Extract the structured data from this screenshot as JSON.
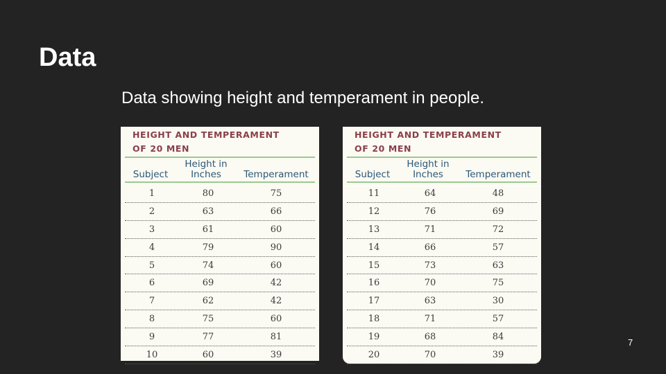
{
  "slide": {
    "title": "Data",
    "subtitle": "Data showing height and temperament in people.",
    "page_number": "7"
  },
  "table_left": {
    "title_line1": "HEIGHT AND TEMPERAMENT",
    "title_line2": "OF 20 MEN",
    "headers": {
      "subject": "Subject",
      "height_line1": "Height in",
      "height_line2": "Inches",
      "temperament": "Temperament"
    },
    "rows": [
      {
        "subject": "1",
        "height": "80",
        "temperament": "75"
      },
      {
        "subject": "2",
        "height": "63",
        "temperament": "66"
      },
      {
        "subject": "3",
        "height": "61",
        "temperament": "60"
      },
      {
        "subject": "4",
        "height": "79",
        "temperament": "90"
      },
      {
        "subject": "5",
        "height": "74",
        "temperament": "60"
      },
      {
        "subject": "6",
        "height": "69",
        "temperament": "42"
      },
      {
        "subject": "7",
        "height": "62",
        "temperament": "42"
      },
      {
        "subject": "8",
        "height": "75",
        "temperament": "60"
      },
      {
        "subject": "9",
        "height": "77",
        "temperament": "81"
      },
      {
        "subject": "10",
        "height": "60",
        "temperament": "39"
      }
    ]
  },
  "table_right": {
    "title_line1": "HEIGHT AND TEMPERAMENT",
    "title_line2": "OF 20 MEN",
    "headers": {
      "subject": "Subject",
      "height_line1": "Height in",
      "height_line2": "Inches",
      "temperament": "Temperament"
    },
    "rows": [
      {
        "subject": "11",
        "height": "64",
        "temperament": "48"
      },
      {
        "subject": "12",
        "height": "76",
        "temperament": "69"
      },
      {
        "subject": "13",
        "height": "71",
        "temperament": "72"
      },
      {
        "subject": "14",
        "height": "66",
        "temperament": "57"
      },
      {
        "subject": "15",
        "height": "73",
        "temperament": "63"
      },
      {
        "subject": "16",
        "height": "70",
        "temperament": "75"
      },
      {
        "subject": "17",
        "height": "63",
        "temperament": "30"
      },
      {
        "subject": "18",
        "height": "71",
        "temperament": "57"
      },
      {
        "subject": "19",
        "height": "68",
        "temperament": "84"
      },
      {
        "subject": "20",
        "height": "70",
        "temperament": "39"
      }
    ]
  }
}
